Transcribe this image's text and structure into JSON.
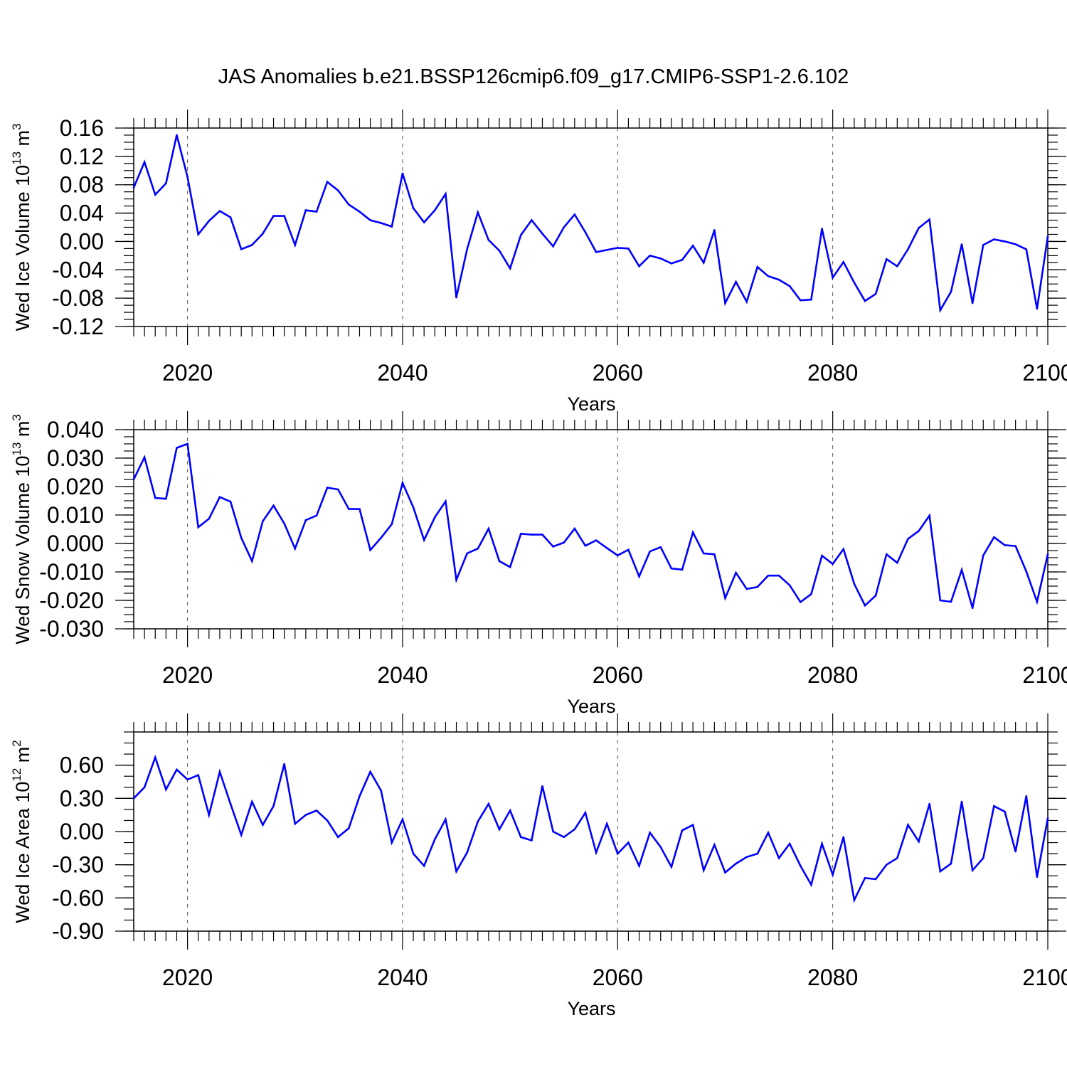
{
  "title": "JAS Anomalies b.e21.BSSP126cmip6.f09_g17.CMIP6-SSP1-2.6.102",
  "line_color": "#0000ff",
  "chart_data": [
    {
      "type": "line",
      "xlabel": "Years",
      "ylabel": "Wed Ice Volume 10",
      "ylabel_sup": "13",
      "ylabel_unit": "m",
      "ylabel_unit_sup": "3",
      "xlim": [
        2015,
        2100
      ],
      "ylim": [
        -0.12,
        0.16
      ],
      "x_ticks": [
        "2020",
        "2040",
        "2060",
        "2080",
        "2100"
      ],
      "y_ticks": [
        "-0.12",
        "-0.08",
        "-0.04",
        "0.00",
        "0.04",
        "0.08",
        "0.12",
        "0.16"
      ],
      "y_tick_values": [
        -0.12,
        -0.08,
        -0.04,
        0.0,
        0.04,
        0.08,
        0.12,
        0.16
      ],
      "y_minor_step": 0.01,
      "vertical_dashed_lines": [
        2020,
        2040,
        2060,
        2080
      ],
      "x_start": 2015,
      "values": [
        0.076,
        0.112,
        0.066,
        0.082,
        0.15,
        0.091,
        0.01,
        0.029,
        0.043,
        0.034,
        -0.011,
        -0.005,
        0.011,
        0.036,
        0.036,
        -0.005,
        0.044,
        0.042,
        0.084,
        0.072,
        0.052,
        0.042,
        0.03,
        0.026,
        0.021,
        0.096,
        0.047,
        0.027,
        0.044,
        0.067,
        -0.079,
        -0.011,
        0.041,
        0.002,
        -0.013,
        -0.038,
        0.009,
        0.03,
        0.011,
        -0.007,
        0.02,
        0.038,
        0.013,
        -0.015,
        -0.012,
        -0.009,
        -0.01,
        -0.035,
        -0.02,
        -0.024,
        -0.031,
        -0.026,
        -0.006,
        -0.03,
        0.016,
        -0.087,
        -0.057,
        -0.085,
        -0.036,
        -0.049,
        -0.054,
        -0.063,
        -0.083,
        -0.082,
        0.018,
        -0.051,
        -0.029,
        -0.058,
        -0.084,
        -0.074,
        -0.025,
        -0.035,
        -0.011,
        0.019,
        0.031,
        -0.097,
        -0.071,
        -0.004,
        -0.087,
        -0.005,
        0.003,
        0.0,
        -0.004,
        -0.011,
        -0.095,
        0.007
      ]
    },
    {
      "type": "line",
      "xlabel": "Years",
      "ylabel": "Wed Snow Volume 10",
      "ylabel_sup": "13",
      "ylabel_unit": "m",
      "ylabel_unit_sup": "3",
      "xlim": [
        2015,
        2100
      ],
      "ylim": [
        -0.03,
        0.04
      ],
      "x_ticks": [
        "2020",
        "2040",
        "2060",
        "2080",
        "2100"
      ],
      "y_ticks": [
        "-0.030",
        "-0.020",
        "-0.010",
        "0.000",
        "0.010",
        "0.020",
        "0.030",
        "0.040"
      ],
      "y_tick_values": [
        -0.03,
        -0.02,
        -0.01,
        0.0,
        0.01,
        0.02,
        0.03,
        0.04
      ],
      "y_minor_step": 0.0025,
      "vertical_dashed_lines": [
        2020,
        2040,
        2060,
        2080
      ],
      "x_start": 2015,
      "values": [
        0.0225,
        0.0303,
        0.016,
        0.0157,
        0.0336,
        0.035,
        0.0057,
        0.0087,
        0.0163,
        0.0147,
        0.002,
        -0.0062,
        0.0078,
        0.0133,
        0.007,
        -0.0018,
        0.0082,
        0.0098,
        0.0196,
        0.019,
        0.0121,
        0.0121,
        -0.0023,
        0.002,
        0.0068,
        0.0213,
        0.0127,
        0.0012,
        0.0092,
        0.0148,
        -0.0128,
        -0.0035,
        -0.0018,
        0.0052,
        -0.0062,
        -0.0083,
        0.0034,
        0.0031,
        0.0031,
        -0.0011,
        0.0003,
        0.0052,
        -0.0008,
        0.0011,
        -0.0016,
        -0.0042,
        -0.0022,
        -0.0116,
        -0.0028,
        -0.0013,
        -0.0088,
        -0.0092,
        0.0039,
        -0.0035,
        -0.0038,
        -0.0192,
        -0.0103,
        -0.016,
        -0.0153,
        -0.0113,
        -0.0113,
        -0.0147,
        -0.0206,
        -0.0178,
        -0.0043,
        -0.0072,
        -0.002,
        -0.0142,
        -0.0218,
        -0.0183,
        -0.0038,
        -0.0068,
        0.0016,
        0.0044,
        0.0098,
        -0.02,
        -0.0205,
        -0.0093,
        -0.0227,
        -0.0042,
        0.0022,
        -0.0006,
        -0.0009,
        -0.0098,
        -0.0205,
        -0.0038
      ]
    },
    {
      "type": "line",
      "xlabel": "Years",
      "ylabel": "Wed Ice Area 10",
      "ylabel_sup": "12",
      "ylabel_unit": "m",
      "ylabel_unit_sup": "2",
      "xlim": [
        2015,
        2100
      ],
      "ylim": [
        -0.9,
        0.9
      ],
      "x_ticks": [
        "2020",
        "2040",
        "2060",
        "2080",
        "2100"
      ],
      "y_ticks": [
        "-0.90",
        "-0.60",
        "-0.30",
        "0.00",
        "0.30",
        "0.60"
      ],
      "y_tick_values": [
        -0.9,
        -0.6,
        -0.3,
        0.0,
        0.3,
        0.6
      ],
      "y_minor_step": 0.1,
      "vertical_dashed_lines": [
        2020,
        2040,
        2060,
        2080
      ],
      "x_start": 2015,
      "values": [
        0.3,
        0.4,
        0.67,
        0.38,
        0.56,
        0.47,
        0.51,
        0.15,
        0.54,
        0.25,
        -0.03,
        0.27,
        0.06,
        0.23,
        0.61,
        0.07,
        0.15,
        0.19,
        0.1,
        -0.05,
        0.03,
        0.32,
        0.54,
        0.37,
        -0.1,
        0.11,
        -0.2,
        -0.31,
        -0.07,
        0.11,
        -0.36,
        -0.19,
        0.09,
        0.25,
        0.02,
        0.19,
        -0.05,
        -0.08,
        0.41,
        0.0,
        -0.05,
        0.02,
        0.17,
        -0.19,
        0.07,
        -0.2,
        -0.1,
        -0.31,
        -0.01,
        -0.14,
        -0.32,
        0.01,
        0.06,
        -0.35,
        -0.12,
        -0.37,
        -0.29,
        -0.23,
        -0.2,
        -0.01,
        -0.24,
        -0.11,
        -0.31,
        -0.48,
        -0.11,
        -0.39,
        -0.05,
        -0.62,
        -0.42,
        -0.43,
        -0.3,
        -0.24,
        0.06,
        -0.09,
        0.25,
        -0.36,
        -0.29,
        0.27,
        -0.35,
        -0.24,
        0.23,
        0.18,
        -0.18,
        0.32,
        -0.41,
        0.12
      ]
    }
  ]
}
